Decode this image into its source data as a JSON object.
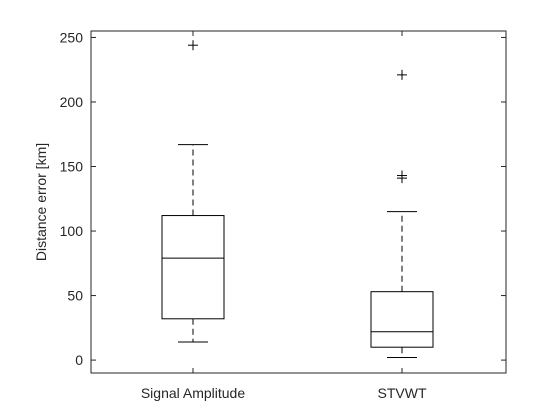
{
  "chart_data": {
    "type": "box",
    "title": "",
    "xlabel": "",
    "ylabel": "Distance error [km]",
    "ylim": [
      -10,
      255
    ],
    "yticks": [
      0,
      50,
      100,
      150,
      200,
      250
    ],
    "categories": [
      "Signal Amplitude",
      "STVWT"
    ],
    "boxes": [
      {
        "category": "Signal Amplitude",
        "whisker_low": 14,
        "q1": 32,
        "median": 79,
        "q3": 112,
        "whisker_high": 167,
        "outliers": [
          244
        ]
      },
      {
        "category": "STVWT",
        "whisker_low": 2,
        "q1": 10,
        "median": 22,
        "q3": 53,
        "whisker_high": 115,
        "outliers": [
          141,
          143,
          221
        ]
      }
    ],
    "grid": false,
    "colors": {
      "box": "#000000",
      "axis": "#262626",
      "background": "#ffffff"
    }
  }
}
